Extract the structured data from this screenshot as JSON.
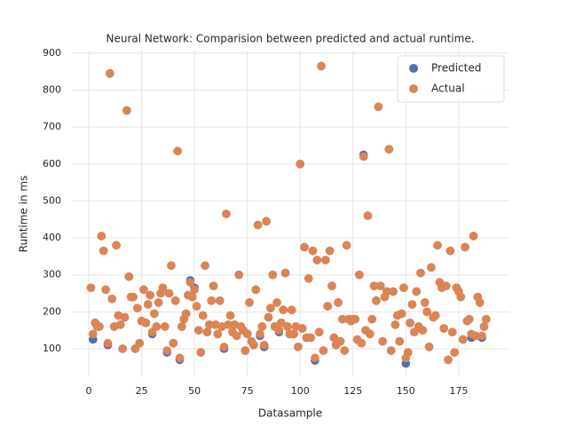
{
  "chart_data": {
    "type": "scatter",
    "title": "Neural Network: Comparision between predicted and actual runtime.",
    "x_label": "Datasample",
    "y_label": "Runtime in ms",
    "xlim": [
      -8,
      199
    ],
    "ylim": [
      23,
      907
    ],
    "xticks": [
      0,
      25,
      50,
      75,
      100,
      125,
      150,
      175
    ],
    "yticks": [
      100,
      200,
      300,
      400,
      500,
      600,
      700,
      800,
      900
    ],
    "grid": true,
    "legend": "upper-right",
    "x": [
      1,
      2,
      3,
      4,
      5,
      6,
      7,
      8,
      9,
      10,
      11,
      12,
      13,
      14,
      15,
      16,
      17,
      18,
      19,
      20,
      21,
      22,
      23,
      24,
      25,
      26,
      27,
      28,
      29,
      30,
      31,
      32,
      33,
      34,
      35,
      36,
      37,
      38,
      39,
      40,
      41,
      42,
      43,
      44,
      45,
      46,
      47,
      48,
      49,
      50,
      51,
      52,
      53,
      54,
      55,
      56,
      57,
      58,
      59,
      60,
      61,
      62,
      63,
      64,
      65,
      66,
      67,
      68,
      69,
      70,
      71,
      72,
      73,
      74,
      75,
      76,
      77,
      78,
      79,
      80,
      81,
      82,
      83,
      84,
      85,
      86,
      87,
      88,
      89,
      90,
      91,
      92,
      93,
      94,
      95,
      96,
      97,
      98,
      99,
      100,
      101,
      102,
      103,
      104,
      105,
      106,
      107,
      108,
      109,
      110,
      111,
      112,
      113,
      114,
      115,
      116,
      117,
      118,
      119,
      120,
      121,
      122,
      123,
      124,
      125,
      126,
      127,
      128,
      129,
      130,
      131,
      132,
      133,
      134,
      135,
      136,
      137,
      138,
      139,
      140,
      141,
      142,
      143,
      144,
      145,
      146,
      147,
      148,
      149,
      150,
      151,
      152,
      153,
      154,
      155,
      156,
      157,
      158,
      159,
      160,
      161,
      162,
      163,
      164,
      165,
      166,
      167,
      168,
      169,
      170,
      171,
      172,
      173,
      174,
      175,
      176,
      177,
      178,
      179,
      180,
      181,
      182,
      183,
      184,
      185,
      186,
      187,
      188
    ],
    "series": [
      {
        "name": "Predicted",
        "color": "#4c72b0",
        "values": [
          265,
          125,
          170,
          160,
          160,
          405,
          365,
          260,
          110,
          845,
          235,
          160,
          380,
          190,
          165,
          100,
          185,
          745,
          295,
          240,
          240,
          100,
          210,
          115,
          175,
          260,
          170,
          220,
          245,
          140,
          195,
          160,
          225,
          250,
          265,
          160,
          90,
          250,
          325,
          115,
          230,
          635,
          70,
          160,
          180,
          195,
          245,
          285,
          240,
          265,
          215,
          150,
          90,
          190,
          325,
          145,
          165,
          230,
          270,
          165,
          140,
          230,
          160,
          100,
          465,
          165,
          190,
          145,
          165,
          135,
          300,
          160,
          150,
          95,
          140,
          225,
          120,
          110,
          260,
          435,
          135,
          160,
          105,
          445,
          185,
          210,
          300,
          160,
          225,
          145,
          170,
          205,
          305,
          160,
          140,
          205,
          140,
          160,
          105,
          600,
          155,
          375,
          130,
          290,
          130,
          365,
          68,
          340,
          145,
          865,
          95,
          340,
          215,
          365,
          270,
          130,
          110,
          225,
          120,
          180,
          95,
          380,
          180,
          175,
          180,
          180,
          125,
          300,
          115,
          625,
          150,
          460,
          140,
          180,
          270,
          230,
          755,
          270,
          120,
          240,
          255,
          640,
          95,
          255,
          165,
          190,
          120,
          195,
          265,
          60,
          90,
          170,
          220,
          145,
          255,
          160,
          305,
          150,
          225,
          200,
          105,
          320,
          185,
          190,
          380,
          280,
          265,
          155,
          270,
          70,
          365,
          145,
          90,
          265,
          255,
          240,
          125,
          375,
          175,
          180,
          130,
          405,
          135,
          240,
          225,
          130,
          160,
          180
        ]
      },
      {
        "name": "Actual",
        "color": "#dd8452",
        "values": [
          265,
          140,
          170,
          160,
          160,
          405,
          365,
          260,
          115,
          845,
          235,
          160,
          380,
          190,
          165,
          100,
          185,
          745,
          295,
          240,
          240,
          100,
          210,
          115,
          175,
          260,
          170,
          220,
          245,
          145,
          195,
          160,
          225,
          250,
          265,
          160,
          95,
          250,
          325,
          115,
          230,
          635,
          75,
          160,
          180,
          195,
          245,
          280,
          240,
          260,
          215,
          150,
          90,
          190,
          325,
          145,
          165,
          230,
          270,
          165,
          140,
          230,
          160,
          105,
          465,
          165,
          190,
          145,
          165,
          135,
          300,
          160,
          150,
          95,
          140,
          225,
          120,
          110,
          260,
          435,
          140,
          160,
          110,
          445,
          185,
          210,
          300,
          160,
          225,
          150,
          170,
          205,
          305,
          160,
          140,
          205,
          140,
          160,
          105,
          600,
          155,
          375,
          130,
          290,
          130,
          365,
          75,
          340,
          145,
          865,
          95,
          340,
          215,
          365,
          270,
          130,
          110,
          225,
          120,
          180,
          95,
          380,
          180,
          175,
          180,
          180,
          125,
          300,
          115,
          620,
          150,
          460,
          140,
          180,
          270,
          230,
          755,
          270,
          120,
          240,
          255,
          640,
          95,
          255,
          165,
          190,
          120,
          195,
          265,
          75,
          90,
          170,
          220,
          145,
          255,
          160,
          305,
          150,
          225,
          200,
          105,
          320,
          185,
          190,
          380,
          280,
          265,
          155,
          270,
          70,
          365,
          145,
          90,
          265,
          255,
          240,
          125,
          375,
          175,
          180,
          140,
          405,
          135,
          240,
          225,
          135,
          160,
          180
        ]
      }
    ]
  }
}
